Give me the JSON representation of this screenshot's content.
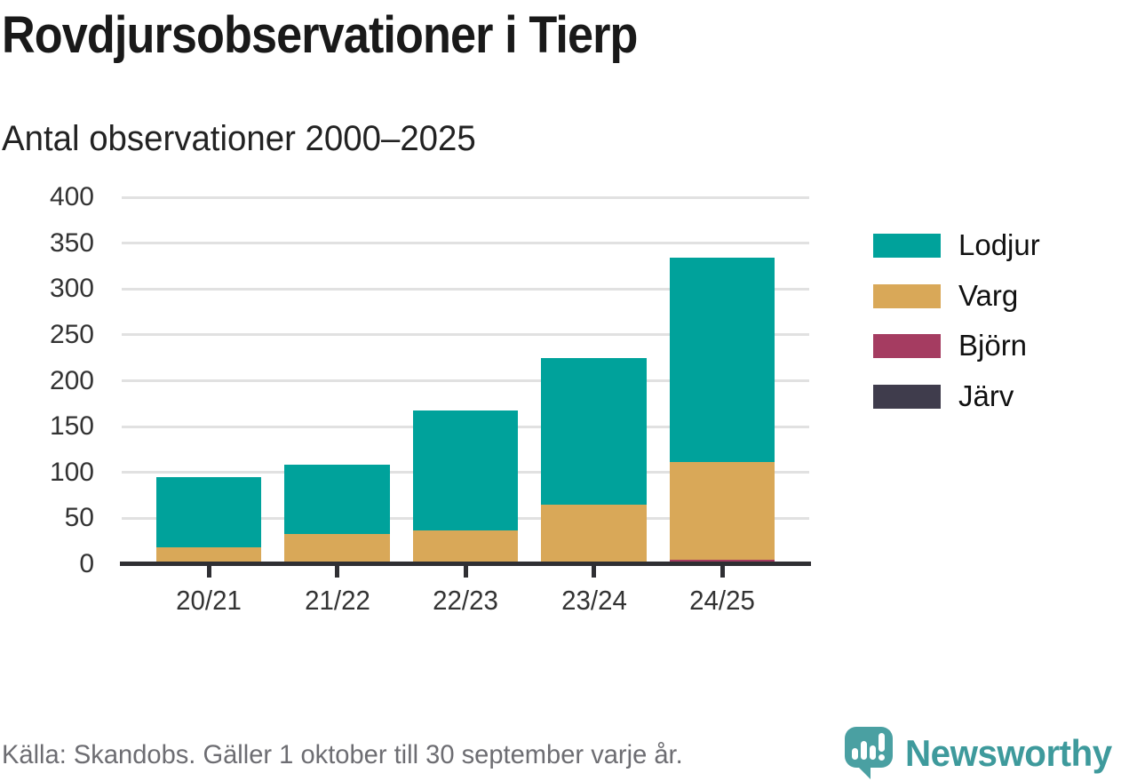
{
  "header": {
    "title": "Rovdjursobservationer i Tierp",
    "subtitle": "Antal observationer 2000–2025"
  },
  "chart_data": {
    "type": "bar",
    "stacked": true,
    "title": "Rovdjursobservationer i Tierp",
    "subtitle": "Antal observationer 2000–2025",
    "categories": [
      "20/21",
      "21/22",
      "22/23",
      "23/24",
      "24/25"
    ],
    "series": [
      {
        "name": "Lodjur",
        "color": "#00a29b",
        "values": [
          77,
          75,
          131,
          160,
          223
        ]
      },
      {
        "name": "Varg",
        "color": "#d9a858",
        "values": [
          18,
          31,
          35,
          62,
          106
        ]
      },
      {
        "name": "Björn",
        "color": "#a53c61",
        "values": [
          0,
          2,
          2,
          2,
          2
        ]
      },
      {
        "name": "Järv",
        "color": "#3f3c4c",
        "values": [
          0,
          0,
          0,
          1,
          3
        ]
      }
    ],
    "totals": [
      95,
      108,
      168,
      225,
      334
    ],
    "xlabel": "",
    "ylabel": "Antal observationer",
    "ylim": [
      0,
      400
    ],
    "ytick_step": 50,
    "yticks": [
      "0",
      "50",
      "100",
      "150",
      "200",
      "250",
      "300",
      "350",
      "400"
    ],
    "grid": true,
    "legend_position": "right",
    "stack_order_bottom_to_top": [
      "Järv",
      "Björn",
      "Varg",
      "Lodjur"
    ]
  },
  "footer": {
    "source": "Källa: Skandobs. Gäller 1 oktober till 30 september varje år.",
    "brand": "Newsworthy"
  },
  "colors": {
    "lodjur": "#00a29b",
    "varg": "#d9a858",
    "bjorn": "#a53c61",
    "jarv": "#3f3c4c",
    "axis": "#2f2f33",
    "gridline": "#e1e1e1",
    "brand_teal": "#4aa0a2",
    "text_muted": "#6d6d72"
  }
}
